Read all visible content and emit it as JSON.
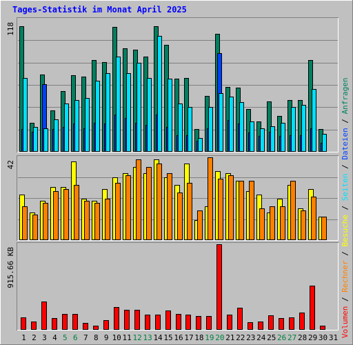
{
  "title": "Tages-Statistik im Monat April 2025",
  "colors": {
    "background": "#c0c0c0",
    "title": "#0000ff",
    "anfragen": "#008060",
    "dateien": "#0040ff",
    "seiten": "#00e0ff",
    "besuche": "#ffff00",
    "rechner": "#ff8000",
    "volumen": "#ff0000",
    "weekend_day": "#008040",
    "normal_day": "#000000"
  },
  "chart_data": [
    {
      "type": "bar",
      "panel": "top",
      "ylabel_max": "118",
      "ylim": [
        0,
        118
      ],
      "categories": [
        "1",
        "2",
        "3",
        "4",
        "5",
        "6",
        "7",
        "8",
        "9",
        "10",
        "11",
        "12",
        "13",
        "14",
        "15",
        "16",
        "17",
        "18",
        "19",
        "20",
        "21",
        "22",
        "23",
        "24",
        "25",
        "26",
        "27",
        "28",
        "29",
        "30",
        "31"
      ],
      "weekend_days": [
        "5",
        "6",
        "12",
        "13",
        "19",
        "20",
        "26",
        "27"
      ],
      "series": [
        {
          "name": "Anfragen",
          "values": [
            112,
            26,
            69,
            37,
            54,
            68,
            67,
            82,
            80,
            111,
            92,
            91,
            85,
            112,
            95,
            65,
            66,
            20,
            50,
            105,
            58,
            57,
            38,
            27,
            45,
            32,
            46,
            46,
            82,
            20,
            null
          ]
        },
        {
          "name": "Dateien",
          "values": [
            20,
            18,
            60,
            20,
            22,
            25,
            21,
            26,
            25,
            33,
            30,
            26,
            24,
            33,
            22,
            15,
            15,
            10,
            21,
            88,
            28,
            25,
            17,
            14,
            18,
            14,
            15,
            15,
            21,
            8,
            null
          ]
        },
        {
          "name": "Seiten",
          "values": [
            66,
            22,
            21,
            29,
            43,
            46,
            48,
            63,
            70,
            85,
            70,
            79,
            66,
            103,
            65,
            43,
            40,
            12,
            40,
            52,
            49,
            44,
            27,
            21,
            23,
            26,
            40,
            42,
            56,
            16,
            null
          ]
        }
      ]
    },
    {
      "type": "bar",
      "panel": "middle",
      "ylabel_max": "42",
      "ylim": [
        0,
        42
      ],
      "series": [
        {
          "name": "Besuche",
          "values": [
            23,
            14,
            20,
            27,
            27,
            40,
            21,
            20,
            26,
            32,
            34,
            37,
            34,
            41,
            32,
            28,
            39,
            10,
            17,
            35,
            34,
            30,
            25,
            23,
            14,
            21,
            28,
            16,
            26,
            12,
            null
          ]
        },
        {
          "name": "Rechner",
          "values": [
            17,
            13,
            19,
            25,
            26,
            28,
            20,
            19,
            21,
            29,
            33,
            41,
            37,
            39,
            34,
            24,
            29,
            15,
            42,
            31,
            33,
            30,
            30,
            16,
            17,
            17,
            30,
            15,
            22,
            12,
            null
          ]
        }
      ]
    },
    {
      "type": "bar",
      "panel": "bottom",
      "ylabel_max": "915.66 KB",
      "ylim": [
        0,
        915.66
      ],
      "series": [
        {
          "name": "Volumen",
          "values": [
            133,
            88,
            303,
            125,
            170,
            168,
            73,
            42,
            103,
            244,
            215,
            212,
            160,
            166,
            208,
            168,
            166,
            144,
            146,
            915.66,
            166,
            237,
            79,
            85,
            155,
            125,
            131,
            186,
            474,
            47,
            null
          ]
        }
      ]
    }
  ],
  "legend_right": [
    {
      "label": "Anfragen",
      "sep": " / "
    },
    {
      "label": "Dateien",
      "sep": " / "
    },
    {
      "label": "Seiten",
      "sep": " / "
    },
    {
      "label": "Besuche",
      "sep": " / "
    },
    {
      "label": "Rechner",
      "sep": " / "
    },
    {
      "label": "Volumen",
      "sep": ""
    }
  ]
}
